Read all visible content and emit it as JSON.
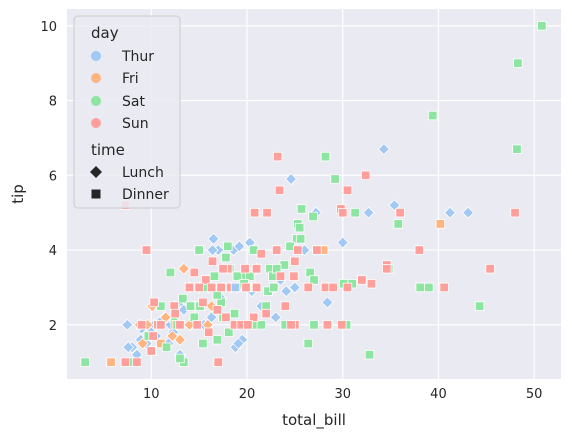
{
  "chart_data": {
    "type": "scatter",
    "xlabel": "total_bill",
    "ylabel": "tip",
    "xlim": [
      1.2,
      52.8
    ],
    "ylim": [
      0.55,
      10.45
    ],
    "xticks": [
      10,
      20,
      30,
      40,
      50
    ],
    "yticks": [
      2,
      4,
      6,
      8,
      10
    ],
    "grid": true,
    "legend_placement": "upper-left",
    "hue": {
      "title": "day",
      "entries": [
        {
          "name": "Thur",
          "color": "#a1c9f4"
        },
        {
          "name": "Fri",
          "color": "#ffb482"
        },
        {
          "name": "Sat",
          "color": "#8de5a1"
        },
        {
          "name": "Sun",
          "color": "#ff9f9b"
        }
      ]
    },
    "style": {
      "title": "time",
      "entries": [
        {
          "name": "Lunch",
          "marker": "diamond"
        },
        {
          "name": "Dinner",
          "marker": "square"
        }
      ]
    },
    "series": [
      {
        "name": "Thur",
        "time": "Lunch",
        "points": [
          [
            34.3,
            6.7
          ],
          [
            41.2,
            5.0
          ],
          [
            43.1,
            5.0
          ],
          [
            27.2,
            5.0
          ],
          [
            24.6,
            5.9
          ],
          [
            35.4,
            5.2
          ],
          [
            28.4,
            2.6
          ],
          [
            30.0,
            4.2
          ],
          [
            32.7,
            5.0
          ],
          [
            18.6,
            4.0
          ],
          [
            19.2,
            4.1
          ],
          [
            20.3,
            4.2
          ],
          [
            17.0,
            4.0
          ],
          [
            16.4,
            4.0
          ],
          [
            19.8,
            3.2
          ],
          [
            20.9,
            3.0
          ],
          [
            21.0,
            3.5
          ],
          [
            22.8,
            3.0
          ],
          [
            24.1,
            2.9
          ],
          [
            23.0,
            2.2
          ],
          [
            19.0,
            3.0
          ],
          [
            18.3,
            3.0
          ],
          [
            16.0,
            3.0
          ],
          [
            17.3,
            2.7
          ],
          [
            15.0,
            3.0
          ],
          [
            14.0,
            3.0
          ],
          [
            13.0,
            2.5
          ],
          [
            12.7,
            2.0
          ],
          [
            12.0,
            2.0
          ],
          [
            11.4,
            2.2
          ],
          [
            11.0,
            2.1
          ],
          [
            10.3,
            2.0
          ],
          [
            10.0,
            1.8
          ],
          [
            9.5,
            1.5
          ],
          [
            8.9,
            1.6
          ],
          [
            8.5,
            1.2
          ],
          [
            8.0,
            1.4
          ],
          [
            7.5,
            2.0
          ],
          [
            7.6,
            1.4
          ],
          [
            10.5,
            1.7
          ],
          [
            12.3,
            1.8
          ],
          [
            13.4,
            2.4
          ],
          [
            14.1,
            2.0
          ],
          [
            14.5,
            2.5
          ],
          [
            15.5,
            2.0
          ],
          [
            16.3,
            2.2
          ],
          [
            17.5,
            3.0
          ],
          [
            18.8,
            1.4
          ],
          [
            19.5,
            1.6
          ],
          [
            20.5,
            2.9
          ],
          [
            21.5,
            2.5
          ],
          [
            23.5,
            3.2
          ],
          [
            25.0,
            3.0
          ],
          [
            26.0,
            4.0
          ],
          [
            13.0,
            1.2
          ],
          [
            11.8,
            1.5
          ],
          [
            9.0,
            1.9
          ],
          [
            16.5,
            4.3
          ],
          [
            19.1,
            1.5
          ]
        ]
      },
      {
        "name": "Fri",
        "time": "Lunch",
        "points": [
          [
            13.4,
            3.5
          ],
          [
            16.3,
            2.5
          ],
          [
            11.5,
            2.2
          ],
          [
            13.0,
            1.6
          ],
          [
            8.8,
            2.0
          ],
          [
            12.5,
            2.5
          ],
          [
            15.9,
            2.0
          ],
          [
            9.6,
            2.0
          ],
          [
            10.1,
            2.5
          ],
          [
            12.2,
            1.7
          ],
          [
            14.0,
            2.0
          ],
          [
            9.1,
            1.5
          ]
        ]
      },
      {
        "name": "Sat",
        "time": "Lunch",
        "points": [
          [
            12.4,
            2.1
          ]
        ]
      },
      {
        "name": "Fri",
        "time": "Dinner",
        "points": [
          [
            40.2,
            4.7
          ],
          [
            28.0,
            4.0
          ],
          [
            22.5,
            3.5
          ],
          [
            12.5,
            2.0
          ],
          [
            5.8,
            1.0
          ],
          [
            16.3,
            3.0
          ],
          [
            21.0,
            3.0
          ],
          [
            27.3,
            4.0
          ],
          [
            11.0,
            1.5
          ]
        ]
      },
      {
        "name": "Sat",
        "time": "Dinner",
        "points": [
          [
            50.8,
            10.0
          ],
          [
            48.3,
            9.0
          ],
          [
            39.4,
            7.6
          ],
          [
            48.2,
            6.7
          ],
          [
            28.2,
            6.5
          ],
          [
            29.2,
            5.9
          ],
          [
            31.3,
            5.0
          ],
          [
            25.7,
            5.1
          ],
          [
            25.3,
            4.7
          ],
          [
            26.9,
            4.9
          ],
          [
            35.8,
            4.7
          ],
          [
            25.2,
            4.3
          ],
          [
            25.5,
            4.6
          ],
          [
            20.7,
            4.0
          ],
          [
            23.9,
            3.6
          ],
          [
            15.0,
            4.0
          ],
          [
            17.8,
            3.8
          ],
          [
            19.5,
            3.3
          ],
          [
            22.4,
            3.5
          ],
          [
            26.6,
            3.4
          ],
          [
            27.0,
            3.2
          ],
          [
            30.1,
            3.1
          ],
          [
            38.1,
            3.0
          ],
          [
            39.0,
            3.0
          ],
          [
            44.3,
            2.5
          ],
          [
            32.8,
            1.2
          ],
          [
            26.4,
            1.5
          ],
          [
            24.0,
            2.0
          ],
          [
            21.0,
            2.0
          ],
          [
            18.1,
            1.8
          ],
          [
            16.9,
            1.6
          ],
          [
            13.4,
            1.0
          ],
          [
            13.0,
            1.1
          ],
          [
            11.6,
            1.4
          ],
          [
            10.1,
            1.3
          ],
          [
            7.6,
            1.0
          ],
          [
            3.1,
            1.0
          ],
          [
            12.7,
            2.0
          ],
          [
            14.5,
            2.2
          ],
          [
            15.1,
            2.5
          ],
          [
            15.8,
            3.0
          ],
          [
            16.6,
            3.3
          ],
          [
            17.3,
            2.6
          ],
          [
            18.2,
            3.5
          ],
          [
            19.0,
            3.3
          ],
          [
            20.0,
            3.0
          ],
          [
            21.5,
            2.0
          ],
          [
            22.2,
            2.9
          ],
          [
            22.7,
            3.3
          ],
          [
            20.3,
            3.3
          ],
          [
            13.3,
            2.7
          ],
          [
            14.1,
            2.5
          ],
          [
            12.0,
            3.4
          ],
          [
            11.0,
            2.5
          ],
          [
            9.7,
            1.7
          ],
          [
            15.4,
            1.5
          ],
          [
            18.7,
            2.3
          ],
          [
            19.7,
            3.1
          ],
          [
            16.9,
            2.8
          ],
          [
            20.9,
            5.0
          ],
          [
            24.5,
            4.1
          ],
          [
            28.5,
            2.0
          ],
          [
            27.0,
            2.0
          ],
          [
            31.0,
            3.1
          ],
          [
            22.8,
            3.0
          ],
          [
            17.5,
            2.2
          ],
          [
            18.0,
            4.1
          ],
          [
            23.1,
            3.5
          ],
          [
            25.6,
            4.3
          ],
          [
            30.4,
            2.0
          ],
          [
            34.8,
            3.5
          ],
          [
            22.0,
            2.5
          ]
        ]
      },
      {
        "name": "Sun",
        "time": "Dinner",
        "points": [
          [
            23.2,
            6.5
          ],
          [
            32.4,
            6.0
          ],
          [
            30.5,
            5.6
          ],
          [
            48.0,
            5.0
          ],
          [
            36.0,
            5.0
          ],
          [
            29.8,
            5.1
          ],
          [
            30.0,
            5.0
          ],
          [
            20.8,
            5.0
          ],
          [
            22.1,
            5.0
          ],
          [
            7.3,
            5.2
          ],
          [
            23.4,
            5.6
          ],
          [
            34.6,
            3.6
          ],
          [
            38.0,
            4.0
          ],
          [
            45.4,
            3.5
          ],
          [
            40.6,
            3.0
          ],
          [
            33.0,
            3.1
          ],
          [
            32.0,
            3.2
          ],
          [
            34.6,
            3.5
          ],
          [
            24.9,
            3.3
          ],
          [
            25.3,
            4.0
          ],
          [
            27.3,
            4.0
          ],
          [
            25.0,
            3.7
          ],
          [
            23.1,
            4.0
          ],
          [
            21.5,
            3.9
          ],
          [
            21.0,
            3.5
          ],
          [
            19.8,
            3.5
          ],
          [
            18.0,
            3.5
          ],
          [
            17.5,
            3.5
          ],
          [
            16.4,
            3.7
          ],
          [
            15.7,
            3.2
          ],
          [
            14.5,
            3.4
          ],
          [
            13.9,
            3.0
          ],
          [
            9.5,
            4.0
          ],
          [
            10.3,
            2.6
          ],
          [
            10.7,
            2.0
          ],
          [
            10.2,
            1.7
          ],
          [
            10.0,
            1.3
          ],
          [
            9.0,
            2.0
          ],
          [
            8.5,
            1.0
          ],
          [
            7.3,
            1.0
          ],
          [
            12.4,
            2.5
          ],
          [
            11.0,
            2.0
          ],
          [
            13.0,
            2.0
          ],
          [
            14.8,
            2.0
          ],
          [
            15.4,
            2.6
          ],
          [
            16.0,
            1.8
          ],
          [
            17.0,
            1.0
          ],
          [
            17.8,
            2.2
          ],
          [
            18.7,
            2.0
          ],
          [
            19.4,
            2.0
          ],
          [
            20.7,
            2.2
          ],
          [
            22.0,
            2.3
          ],
          [
            24.0,
            2.5
          ],
          [
            25.0,
            2.0
          ],
          [
            28.4,
            2.0
          ],
          [
            29.9,
            2.0
          ],
          [
            18.3,
            3.0
          ],
          [
            16.3,
            3.0
          ],
          [
            17.3,
            3.0
          ],
          [
            19.9,
            3.0
          ],
          [
            15.0,
            3.0
          ],
          [
            12.5,
            2.3
          ],
          [
            14.0,
            3.0
          ],
          [
            16.9,
            2.4
          ],
          [
            20.1,
            2.0
          ],
          [
            24.6,
            2.0
          ],
          [
            21.0,
            3.0
          ],
          [
            23.5,
            3.3
          ],
          [
            26.4,
            3.0
          ],
          [
            28.2,
            3.0
          ],
          [
            29.0,
            3.0
          ],
          [
            30.5,
            3.0
          ]
        ]
      },
      {
        "name": "Thur",
        "time": "Dinner",
        "points": [
          [
            18.8,
            3.0
          ]
        ]
      }
    ]
  }
}
